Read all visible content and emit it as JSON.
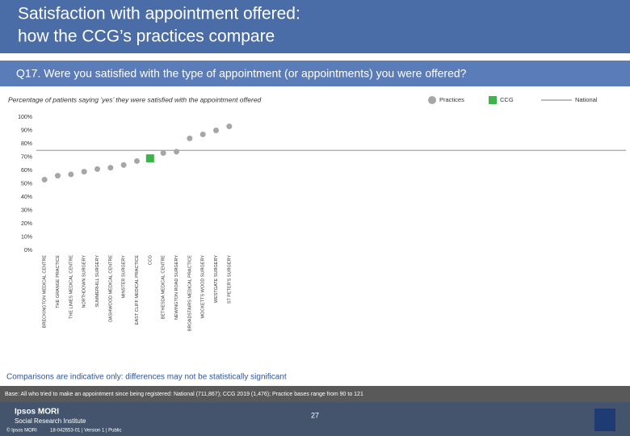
{
  "header": {
    "title_line1": "Satisfaction with appointment offered:",
    "title_line2": "how the CCG’s practices compare",
    "question": "Q17. Were you satisfied with the type of appointment (or appointments) you were offered?"
  },
  "chart_data": {
    "type": "scatter",
    "subtitle": "Percentage of patients saying ‘yes’ they were satisfied with the appointment offered",
    "categories": [
      "BRECKINGTON MEDICAL CENTRE",
      "THE GRANGE PRACTICE",
      "THE LIMES MEDICAL CENTRE",
      "NORTHDOWN SURGERY",
      "SUMMERHILL SURGERY",
      "DASHWOOD MEDICAL CENTRE",
      "MINSTER SURGERY",
      "EAST CLIFF MEDICAL PRACTICE",
      "CCG",
      "BETHESDA MEDICAL CENTRE",
      "NEWINGTON ROAD SURGERY",
      "BROADSTAIRS MEDICAL PRACTICE",
      "MOCKETTS WOOD SURGERY",
      "WESTGATE SURGERY",
      "ST PETER'S SURGERY"
    ],
    "series": [
      {
        "name": "Practices",
        "color": "#a6a6a6",
        "marker": "circle",
        "values": [
          53,
          56,
          57,
          59,
          61,
          62,
          64,
          67,
          null,
          73,
          74,
          84,
          87,
          90,
          93
        ]
      },
      {
        "name": "CCG",
        "color": "#3cb44b",
        "marker": "square",
        "values": [
          null,
          null,
          null,
          null,
          null,
          null,
          null,
          null,
          69,
          null,
          null,
          null,
          null,
          null,
          null
        ]
      }
    ],
    "reference": {
      "name": "National",
      "color": "#a6a6a6",
      "value": 75
    },
    "ylim": [
      0,
      100
    ],
    "yticks": [
      {
        "value": 0,
        "label": "0%"
      },
      {
        "value": 10,
        "label": "10%"
      },
      {
        "value": 20,
        "label": "20%"
      },
      {
        "value": 30,
        "label": "30%"
      },
      {
        "value": 40,
        "label": "40%"
      },
      {
        "value": 50,
        "label": "50%"
      },
      {
        "value": 60,
        "label": "60%"
      },
      {
        "value": 70,
        "label": "70%"
      },
      {
        "value": 80,
        "label": "80%"
      },
      {
        "value": 90,
        "label": "90%"
      },
      {
        "value": 100,
        "label": "100%"
      }
    ],
    "grid": false
  },
  "footnote": "Comparisons are indicative only: differences may not be statistically significant",
  "base": "Base: All who tried to make an appointment since being registered: National (711,867); CCG 2019 (1,476); Practice bases range from 90 to 121",
  "footer": {
    "logo_line1": "Ipsos MORI",
    "logo_line2": "Social Research Institute",
    "page": "27",
    "copyright": "© Ipsos MORI",
    "job": "18-042653-01 | Version 1 | Public"
  }
}
